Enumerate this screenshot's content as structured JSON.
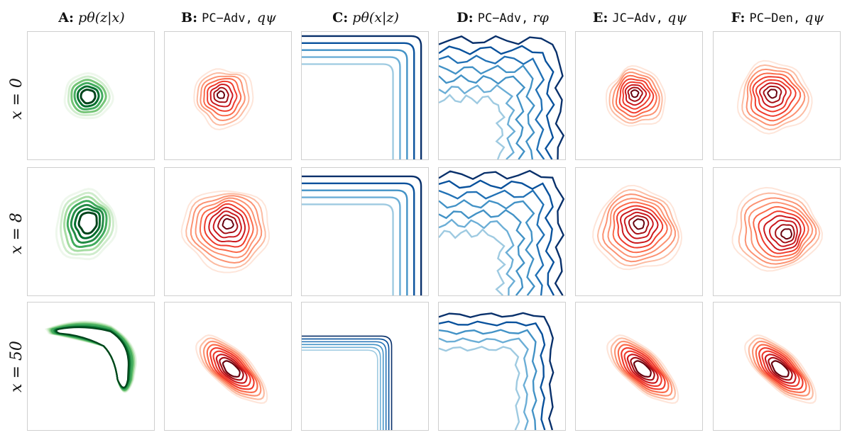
{
  "columns": [
    {
      "letter": "A:",
      "rest": "p",
      "math": "θ(z|x)",
      "mono": "",
      "tail": ""
    },
    {
      "letter": "B:",
      "rest": "",
      "math": "",
      "mono": "PC−Adv,",
      "tail": "qψ"
    },
    {
      "letter": "C:",
      "rest": "p",
      "math": "θ(x|z)",
      "mono": "",
      "tail": ""
    },
    {
      "letter": "D:",
      "rest": "",
      "math": "",
      "mono": "PC−Adv,",
      "tail": "rφ"
    },
    {
      "letter": "E:",
      "rest": "",
      "math": "",
      "mono": "JC−Adv,",
      "tail": "qψ"
    },
    {
      "letter": "F:",
      "rest": "",
      "math": "",
      "mono": "PC−Den,",
      "tail": "qψ"
    }
  ],
  "rows": [
    {
      "label": "x = 0"
    },
    {
      "label": "x = 8"
    },
    {
      "label": "x = 50"
    }
  ],
  "palettes": {
    "green": [
      "#eef7ec",
      "#cfeccc",
      "#a5dca2",
      "#74c476",
      "#41ab5d",
      "#238b45",
      "#006d2c",
      "#00441b"
    ],
    "red": [
      "#fee5d9",
      "#fcbba1",
      "#fc9272",
      "#fb6a4a",
      "#ef3b2c",
      "#cb181d",
      "#a50f15",
      "#67000d"
    ],
    "blue": [
      "#deebf7",
      "#c6dbef",
      "#9ecae1",
      "#6baed6",
      "#4292c6",
      "#2171b5",
      "#08519c",
      "#08306b"
    ]
  }
}
